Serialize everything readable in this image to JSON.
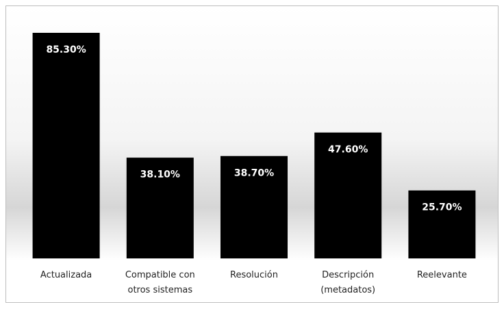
{
  "chart_data": {
    "type": "bar",
    "categories": [
      "Actualizada",
      "Compatible con otros sistemas",
      "Resolución",
      "Descripción (metadatos)",
      "Reelevante"
    ],
    "values": [
      85.3,
      38.1,
      38.7,
      47.6,
      25.7
    ],
    "value_labels": [
      "85.30%",
      "38.10%",
      "38.70%",
      "47.60%",
      "25.70%"
    ],
    "color": "#000000"
  }
}
